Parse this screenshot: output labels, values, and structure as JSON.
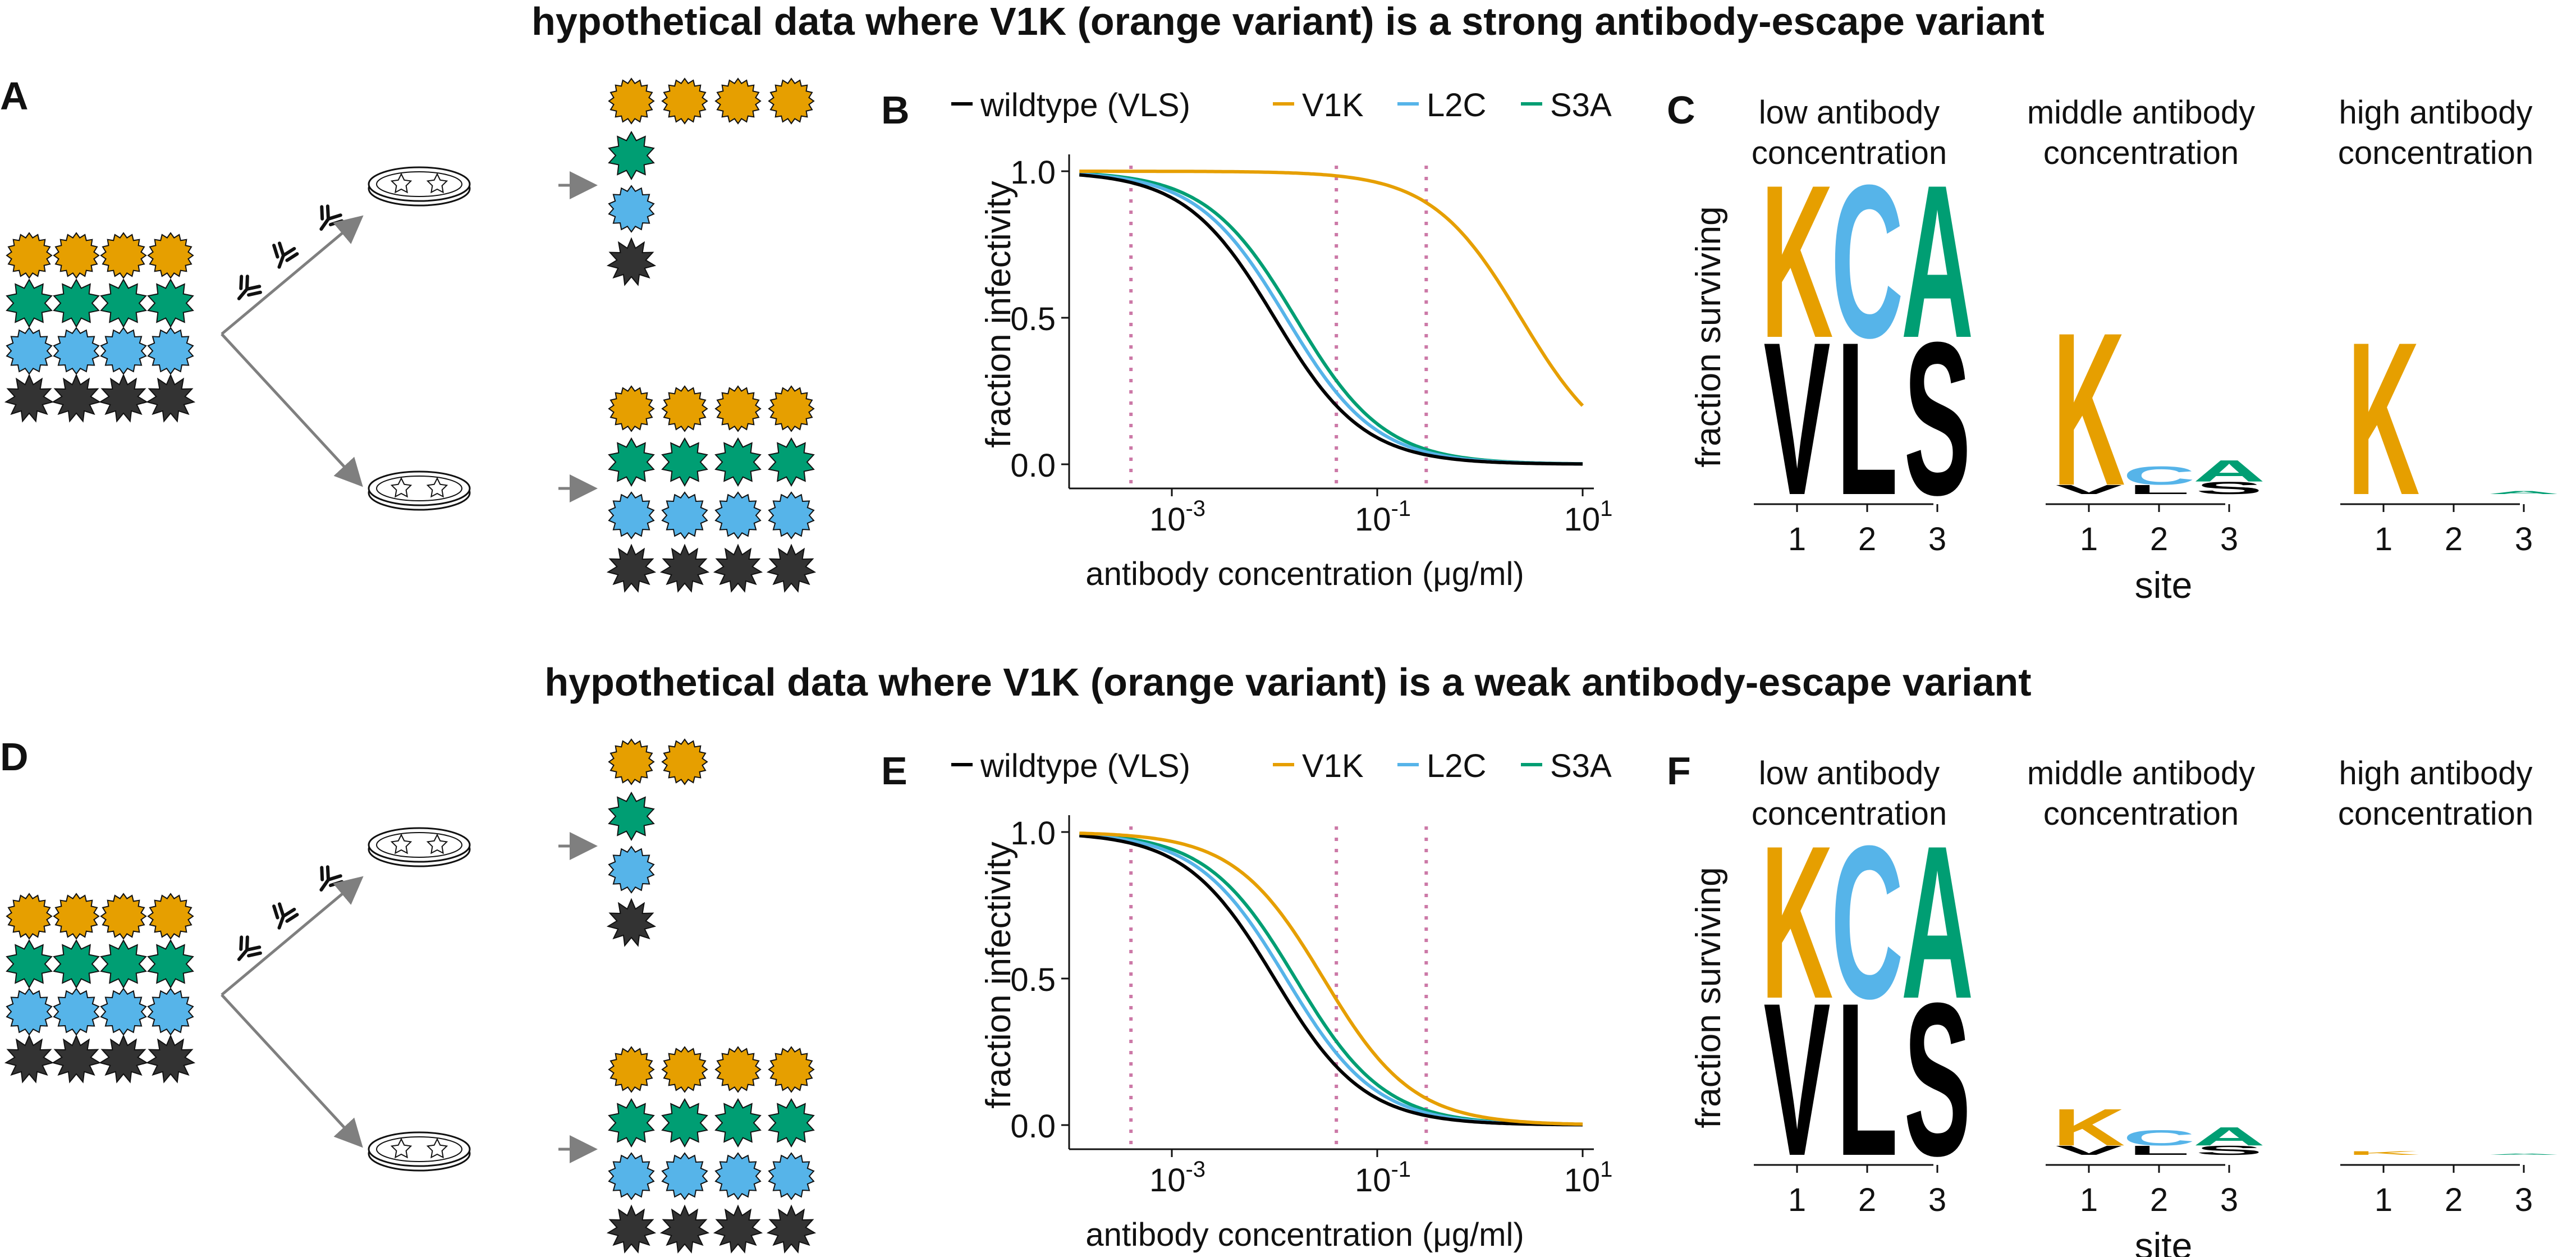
{
  "colors": {
    "orange": "#E69F00",
    "blue": "#56B4E9",
    "green": "#009E73",
    "black": "#000000",
    "dark": "#333333",
    "refline": "#CC79A7",
    "arrow": "#7f7f7f"
  },
  "panels": [
    {
      "title": "hypothetical data where V1K (orange variant) is a strong antibody-escape variant",
      "label_diagram": "A",
      "label_curve": "B",
      "label_logo": "C",
      "surviving_top_row": [
        "orange",
        "orange",
        "orange",
        "orange"
      ],
      "surviving_column": [
        "green",
        "blue",
        "black"
      ],
      "legend": [
        "wildtype (VLS)",
        "V1K",
        "L2C",
        "S3A"
      ],
      "ytick_labels": [
        "1.0",
        "0.5",
        "0.0"
      ],
      "xtick_labels": [
        {
          "base": "10",
          "exp": "-3"
        },
        {
          "base": "10",
          "exp": "-1"
        },
        {
          "base": "10",
          "exp": "1"
        }
      ],
      "ylabel": "fraction infectivity",
      "xlabel": "antibody concentration (μg/ml)",
      "logo_titles": [
        [
          "low antibody",
          "concentration"
        ],
        [
          "middle antibody",
          "concentration"
        ],
        [
          "high antibody",
          "concentration"
        ]
      ],
      "logo_ylabel": "fraction surviving",
      "logo_xlabel": "site",
      "logo_sites": [
        "1",
        "2",
        "3"
      ]
    },
    {
      "title": "hypothetical data where V1K (orange variant) is a weak antibody-escape variant",
      "label_diagram": "D",
      "label_curve": "E",
      "label_logo": "F",
      "surviving_top_row": [
        "orange",
        "orange"
      ],
      "surviving_column": [
        "green",
        "blue",
        "black"
      ],
      "legend": [
        "wildtype (VLS)",
        "V1K",
        "L2C",
        "S3A"
      ],
      "ytick_labels": [
        "1.0",
        "0.5",
        "0.0"
      ],
      "xtick_labels": [
        {
          "base": "10",
          "exp": "-3"
        },
        {
          "base": "10",
          "exp": "-1"
        },
        {
          "base": "10",
          "exp": "1"
        }
      ],
      "ylabel": "fraction infectivity",
      "xlabel": "antibody concentration (μg/ml)",
      "logo_titles": [
        [
          "low antibody",
          "concentration"
        ],
        [
          "middle antibody",
          "concentration"
        ],
        [
          "high antibody",
          "concentration"
        ]
      ],
      "logo_ylabel": "fraction surviving",
      "logo_xlabel": "site",
      "logo_sites": [
        "1",
        "2",
        "3"
      ]
    }
  ],
  "chart_data": [
    {
      "type": "line",
      "xscale": "log",
      "xlim": [
        0.0001,
        10
      ],
      "ylim": [
        0,
        1
      ],
      "ylabel": "fraction infectivity",
      "xlabel": "antibody concentration (μg/ml)",
      "reference_lines_x": [
        0.0004,
        0.04,
        0.3
      ],
      "series": [
        {
          "name": "wildtype (VLS)",
          "color": "black",
          "ic50": 0.01,
          "hill": 1.0
        },
        {
          "name": "V1K",
          "color": "orange",
          "ic50": 2.5,
          "hill": 1.0
        },
        {
          "name": "L2C",
          "color": "blue",
          "ic50": 0.013,
          "hill": 1.0
        },
        {
          "name": "S3A",
          "color": "green",
          "ic50": 0.016,
          "hill": 1.0
        }
      ],
      "logo": [
        {
          "condition": "low antibody concentration",
          "sites": [
            {
              "site": "1",
              "wt": "V",
              "wt_height": 0.5,
              "mut": "K",
              "mut_height": 0.5
            },
            {
              "site": "2",
              "wt": "L",
              "wt_height": 0.5,
              "mut": "C",
              "mut_height": 0.5
            },
            {
              "site": "3",
              "wt": "S",
              "wt_height": 0.5,
              "mut": "A",
              "mut_height": 0.5
            }
          ]
        },
        {
          "condition": "middle antibody concentration",
          "sites": [
            {
              "site": "1",
              "wt": "V",
              "wt_height": 0.03,
              "mut": "K",
              "mut_height": 0.5
            },
            {
              "site": "2",
              "wt": "L",
              "wt_height": 0.03,
              "mut": "C",
              "mut_height": 0.06
            },
            {
              "site": "3",
              "wt": "S",
              "wt_height": 0.04,
              "mut": "A",
              "mut_height": 0.07
            }
          ]
        },
        {
          "condition": "high antibody concentration",
          "sites": [
            {
              "site": "1",
              "wt": "V",
              "wt_height": 0.0,
              "mut": "K",
              "mut_height": 0.5
            },
            {
              "site": "2",
              "wt": "L",
              "wt_height": 0.0,
              "mut": "C",
              "mut_height": 0.0
            },
            {
              "site": "3",
              "wt": "S",
              "wt_height": 0.0,
              "mut": "A",
              "mut_height": 0.01
            }
          ]
        }
      ]
    },
    {
      "type": "line",
      "xscale": "log",
      "xlim": [
        0.0001,
        10
      ],
      "ylim": [
        0,
        1
      ],
      "ylabel": "fraction infectivity",
      "xlabel": "antibody concentration (μg/ml)",
      "reference_lines_x": [
        0.0004,
        0.04,
        0.3
      ],
      "series": [
        {
          "name": "wildtype (VLS)",
          "color": "black",
          "ic50": 0.01,
          "hill": 1.0
        },
        {
          "name": "V1K",
          "color": "orange",
          "ic50": 0.03,
          "hill": 1.0
        },
        {
          "name": "L2C",
          "color": "blue",
          "ic50": 0.013,
          "hill": 1.0
        },
        {
          "name": "S3A",
          "color": "green",
          "ic50": 0.016,
          "hill": 1.0
        }
      ],
      "logo": [
        {
          "condition": "low antibody concentration",
          "sites": [
            {
              "site": "1",
              "wt": "V",
              "wt_height": 0.5,
              "mut": "K",
              "mut_height": 0.5
            },
            {
              "site": "2",
              "wt": "L",
              "wt_height": 0.5,
              "mut": "C",
              "mut_height": 0.5
            },
            {
              "site": "3",
              "wt": "S",
              "wt_height": 0.5,
              "mut": "A",
              "mut_height": 0.5
            }
          ]
        },
        {
          "condition": "middle antibody concentration",
          "sites": [
            {
              "site": "1",
              "wt": "V",
              "wt_height": 0.03,
              "mut": "K",
              "mut_height": 0.12
            },
            {
              "site": "2",
              "wt": "L",
              "wt_height": 0.03,
              "mut": "C",
              "mut_height": 0.05
            },
            {
              "site": "3",
              "wt": "S",
              "wt_height": 0.03,
              "mut": "A",
              "mut_height": 0.06
            }
          ]
        },
        {
          "condition": "high antibody concentration",
          "sites": [
            {
              "site": "1",
              "wt": "V",
              "wt_height": 0.0,
              "mut": "K",
              "mut_height": 0.012
            },
            {
              "site": "2",
              "wt": "L",
              "wt_height": 0.0,
              "mut": "C",
              "mut_height": 0.0
            },
            {
              "site": "3",
              "wt": "S",
              "wt_height": 0.0,
              "mut": "A",
              "mut_height": 0.004
            }
          ]
        }
      ]
    }
  ]
}
